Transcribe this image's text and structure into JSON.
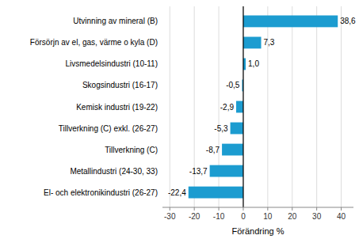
{
  "chart_data": {
    "type": "bar",
    "orientation": "horizontal",
    "categories": [
      "El- och elektronikindustri (26-27)",
      "Metallindustri (24-30, 33)",
      "Tillverkning (C)",
      "Tillverkning (C) exkl. (26-27)",
      "Kemisk industri (19-22)",
      "Skogsindustri (16-17)",
      "Livsmedelsindustri (10-11)",
      "Försörjn av el, gas, värme o kyla (D)",
      "Utvinning av mineral (B)"
    ],
    "values": [
      -22.4,
      -13.7,
      -8.7,
      -5.3,
      -2.9,
      -0.5,
      1.0,
      7.3,
      38.6
    ],
    "value_labels": [
      "-22,4",
      "-13,7",
      "-8,7",
      "-5,3",
      "-2,9",
      "-0,5",
      "1,0",
      "7,3",
      "38,6"
    ],
    "data_labels": true,
    "color": "#1c9cd0",
    "xlabel": "Förändring %",
    "xlim": [
      -33,
      45
    ],
    "xticks": [
      -30,
      -20,
      -10,
      0,
      10,
      20,
      30,
      40
    ],
    "grid": true
  }
}
